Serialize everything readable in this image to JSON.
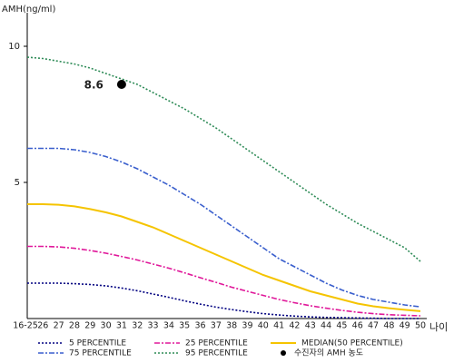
{
  "chart_data": {
    "type": "line",
    "y_label": "AMH(ng/ml)",
    "x_label": "나이",
    "categories": [
      "16-25",
      "26",
      "27",
      "28",
      "29",
      "30",
      "31",
      "32",
      "33",
      "34",
      "35",
      "36",
      "37",
      "38",
      "39",
      "40",
      "41",
      "42",
      "43",
      "44",
      "45",
      "46",
      "47",
      "48",
      "49",
      "50"
    ],
    "ylim": [
      0,
      11.4
    ],
    "yticks": [
      5,
      10
    ],
    "series": [
      {
        "name": "5 PERCENTILE",
        "color": "#000080",
        "dash": "2,2",
        "values": [
          1.3,
          1.3,
          1.3,
          1.28,
          1.25,
          1.2,
          1.12,
          1.02,
          0.9,
          0.78,
          0.65,
          0.53,
          0.42,
          0.33,
          0.25,
          0.18,
          0.13,
          0.09,
          0.06,
          0.04,
          0.03,
          0.02,
          0.01,
          0,
          0,
          0
        ]
      },
      {
        "name": "25 PERCENTILE",
        "color": "#e0189a",
        "dash": "6,2,2,2",
        "values": [
          2.65,
          2.65,
          2.63,
          2.58,
          2.5,
          2.4,
          2.28,
          2.15,
          2.0,
          1.85,
          1.68,
          1.5,
          1.33,
          1.15,
          1.0,
          0.85,
          0.7,
          0.58,
          0.47,
          0.38,
          0.3,
          0.23,
          0.18,
          0.14,
          0.12,
          0.1
        ]
      },
      {
        "name": "MEDIAN(50 PERCENTILE)",
        "color": "#f5c400",
        "dash": "none",
        "values": [
          4.2,
          4.2,
          4.18,
          4.12,
          4.02,
          3.9,
          3.75,
          3.55,
          3.35,
          3.1,
          2.85,
          2.6,
          2.35,
          2.1,
          1.85,
          1.6,
          1.4,
          1.2,
          1.0,
          0.85,
          0.7,
          0.55,
          0.45,
          0.38,
          0.32,
          0.27
        ]
      },
      {
        "name": "75 PERCENTILE",
        "color": "#3a5fcd",
        "dash": "6,2,2,2",
        "values": [
          6.25,
          6.25,
          6.25,
          6.2,
          6.1,
          5.95,
          5.75,
          5.5,
          5.2,
          4.9,
          4.55,
          4.2,
          3.8,
          3.4,
          3.0,
          2.6,
          2.2,
          1.9,
          1.6,
          1.3,
          1.05,
          0.85,
          0.7,
          0.6,
          0.5,
          0.43
        ]
      },
      {
        "name": "95 PERCENTILE",
        "color": "#2e8b57",
        "dash": "2,2",
        "values": [
          9.6,
          9.55,
          9.45,
          9.35,
          9.2,
          9.0,
          8.8,
          8.6,
          8.3,
          8.0,
          7.7,
          7.35,
          7.0,
          6.6,
          6.2,
          5.8,
          5.4,
          5.0,
          4.6,
          4.2,
          3.85,
          3.5,
          3.2,
          2.9,
          2.6,
          2.1
        ]
      }
    ],
    "marker": {
      "name": "수진자의 AMH 농도",
      "category": "31",
      "value": 8.6,
      "color": "#000000"
    }
  }
}
